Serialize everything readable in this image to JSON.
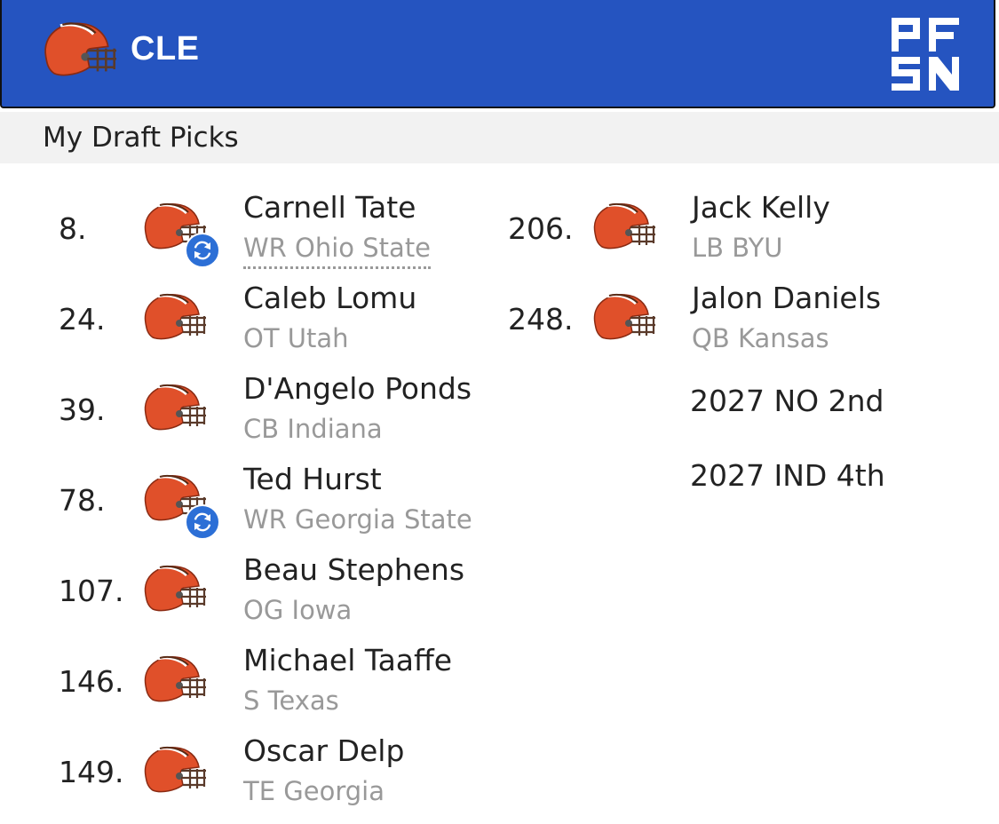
{
  "header": {
    "team_abbr": "CLE",
    "team_logo_icon": "browns-helmet-icon",
    "brand_logo": "PFSN",
    "background_color": "#2554c0"
  },
  "section": {
    "title": "My Draft Picks"
  },
  "picks_left": [
    {
      "number": "8.",
      "name": "Carnell Tate",
      "info": "WR Ohio State",
      "traded": true
    },
    {
      "number": "24.",
      "name": "Caleb Lomu",
      "info": "OT Utah",
      "traded": false
    },
    {
      "number": "39.",
      "name": "D'Angelo Ponds",
      "info": "CB Indiana",
      "traded": false
    },
    {
      "number": "78.",
      "name": "Ted Hurst",
      "info": "WR Georgia State",
      "traded": true
    },
    {
      "number": "107.",
      "name": "Beau Stephens",
      "info": "OG Iowa",
      "traded": false
    },
    {
      "number": "146.",
      "name": "Michael Taaffe",
      "info": "S Texas",
      "traded": false
    },
    {
      "number": "149.",
      "name": "Oscar Delp",
      "info": "TE Georgia",
      "traded": false
    }
  ],
  "picks_right": [
    {
      "number": "206.",
      "name": "Jack Kelly",
      "info": "LB BYU",
      "traded": false
    },
    {
      "number": "248.",
      "name": "Jalon Daniels",
      "info": "QB Kansas",
      "traded": false
    }
  ],
  "future_picks": [
    "2027 NO 2nd",
    "2027 IND 4th"
  ],
  "colors": {
    "helmet_orange": "#e0502a",
    "swap_badge_blue": "#2c6fd6",
    "info_gray": "#999999"
  }
}
